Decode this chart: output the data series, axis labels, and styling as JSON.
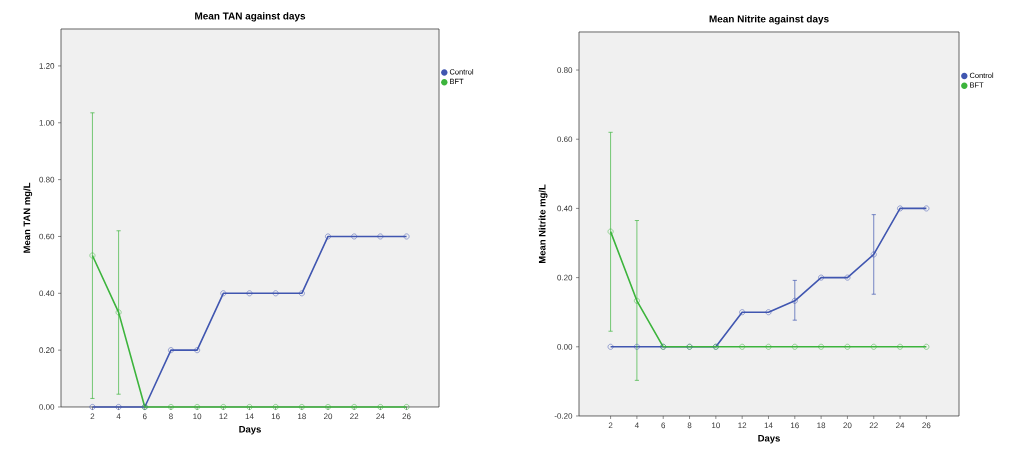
{
  "chart_data": [
    {
      "type": "line",
      "title": "Mean TAN against days",
      "xlabel": "Days",
      "ylabel": "Mean TAN mg/L",
      "categories": [
        "2",
        "4",
        "6",
        "8",
        "10",
        "12",
        "14",
        "16",
        "18",
        "20",
        "22",
        "24",
        "26"
      ],
      "series": [
        {
          "name": "Control",
          "color": "#4056b0",
          "values": [
            0,
            0,
            0,
            0.2,
            0.2,
            0.4,
            0.4,
            0.4,
            0.4,
            0.6,
            0.6,
            0.6,
            0.6
          ]
        },
        {
          "name": "BFT",
          "color": "#3cb43c",
          "values": [
            0.533,
            0.333,
            0,
            0,
            0,
            0,
            0,
            0,
            0,
            0,
            0,
            0,
            0
          ],
          "errors": [
            [
              0.03,
              1.035
            ],
            [
              0.045,
              0.62
            ],
            null,
            null,
            null,
            null,
            null,
            null,
            null,
            null,
            null,
            null,
            null
          ]
        }
      ],
      "ylim": [
        0,
        1.33
      ],
      "yticks": [
        {
          "value": 0,
          "label": "0.00"
        },
        {
          "value": 0.2,
          "label": "0.20"
        },
        {
          "value": 0.4,
          "label": "0.40"
        },
        {
          "value": 0.6,
          "label": "0.60"
        },
        {
          "value": 0.8,
          "label": "0.80"
        },
        {
          "value": 1.0,
          "label": "1.00"
        },
        {
          "value": 1.2,
          "label": "1.20"
        }
      ],
      "legend": "top right",
      "marker": "circle",
      "grid": false
    },
    {
      "type": "line",
      "title": "Mean Nitrite against days",
      "xlabel": "Days",
      "ylabel": "Mean Nitrite mg/L",
      "categories": [
        "2",
        "4",
        "6",
        "8",
        "10",
        "12",
        "14",
        "16",
        "18",
        "20",
        "22",
        "24",
        "26"
      ],
      "series": [
        {
          "name": "Control",
          "color": "#4056b0",
          "values": [
            0,
            0,
            0,
            0,
            0,
            0.1,
            0.1,
            0.133,
            0.2,
            0.2,
            0.267,
            0.4,
            0.4
          ],
          "errors": [
            null,
            null,
            null,
            null,
            null,
            null,
            null,
            [
              0.077,
              0.192
            ],
            null,
            null,
            [
              0.152,
              0.382
            ],
            null,
            null
          ]
        },
        {
          "name": "BFT",
          "color": "#3cb43c",
          "values": [
            0.333,
            0.133,
            0,
            0,
            0,
            0,
            0,
            0,
            0,
            0,
            0,
            0,
            0
          ],
          "errors": [
            [
              0.045,
              0.62
            ],
            [
              -0.097,
              0.365
            ],
            null,
            null,
            null,
            null,
            null,
            null,
            null,
            null,
            null,
            null,
            null
          ]
        }
      ],
      "ylim": [
        -0.2,
        0.91
      ],
      "yticks": [
        {
          "value": -0.2,
          "label": "-0.20"
        },
        {
          "value": 0,
          "label": "0.00"
        },
        {
          "value": 0.2,
          "label": "0.20"
        },
        {
          "value": 0.4,
          "label": "0.40"
        },
        {
          "value": 0.6,
          "label": "0.60"
        },
        {
          "value": 0.8,
          "label": "0.80"
        }
      ],
      "legend": "top right",
      "marker": "circle",
      "grid": false
    }
  ]
}
